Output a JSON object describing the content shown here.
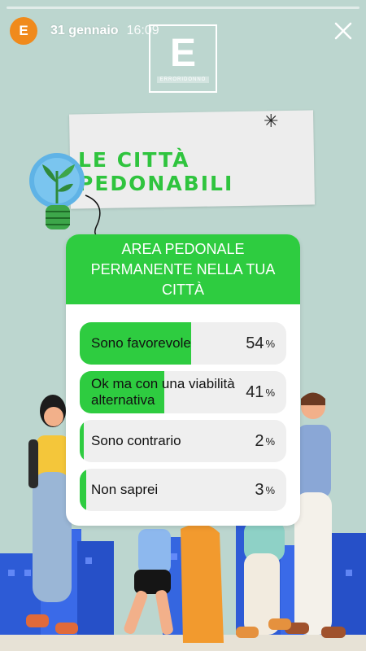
{
  "header": {
    "avatar_letter": "E",
    "date": "31 gennaio",
    "time": "16:09"
  },
  "logo": {
    "letter": "E",
    "subtitle": "ERRORIDONNO"
  },
  "title": "LE CITTÀ PEDONABILI",
  "poll": {
    "question": "AREA PEDONALE PERMANENTE NELLA TUA CITTÀ",
    "options": [
      {
        "label": "Sono favorevole",
        "percent": 54,
        "percent_text": "54",
        "percent_sign": "%"
      },
      {
        "label": "Ok ma con una viabilità alternativa",
        "percent": 41,
        "percent_text": "41",
        "percent_sign": "%"
      },
      {
        "label": "Sono contrario",
        "percent": 2,
        "percent_text": "2",
        "percent_sign": "%"
      },
      {
        "label": "Non saprei",
        "percent": 3,
        "percent_text": "3",
        "percent_sign": "%"
      }
    ]
  },
  "colors": {
    "accent": "#2ecc40",
    "background": "#bcd6cf",
    "avatar": "#f08a1c"
  },
  "icons": {
    "close": "close-icon",
    "star": "star-icon",
    "bulb": "lightbulb-icon"
  }
}
